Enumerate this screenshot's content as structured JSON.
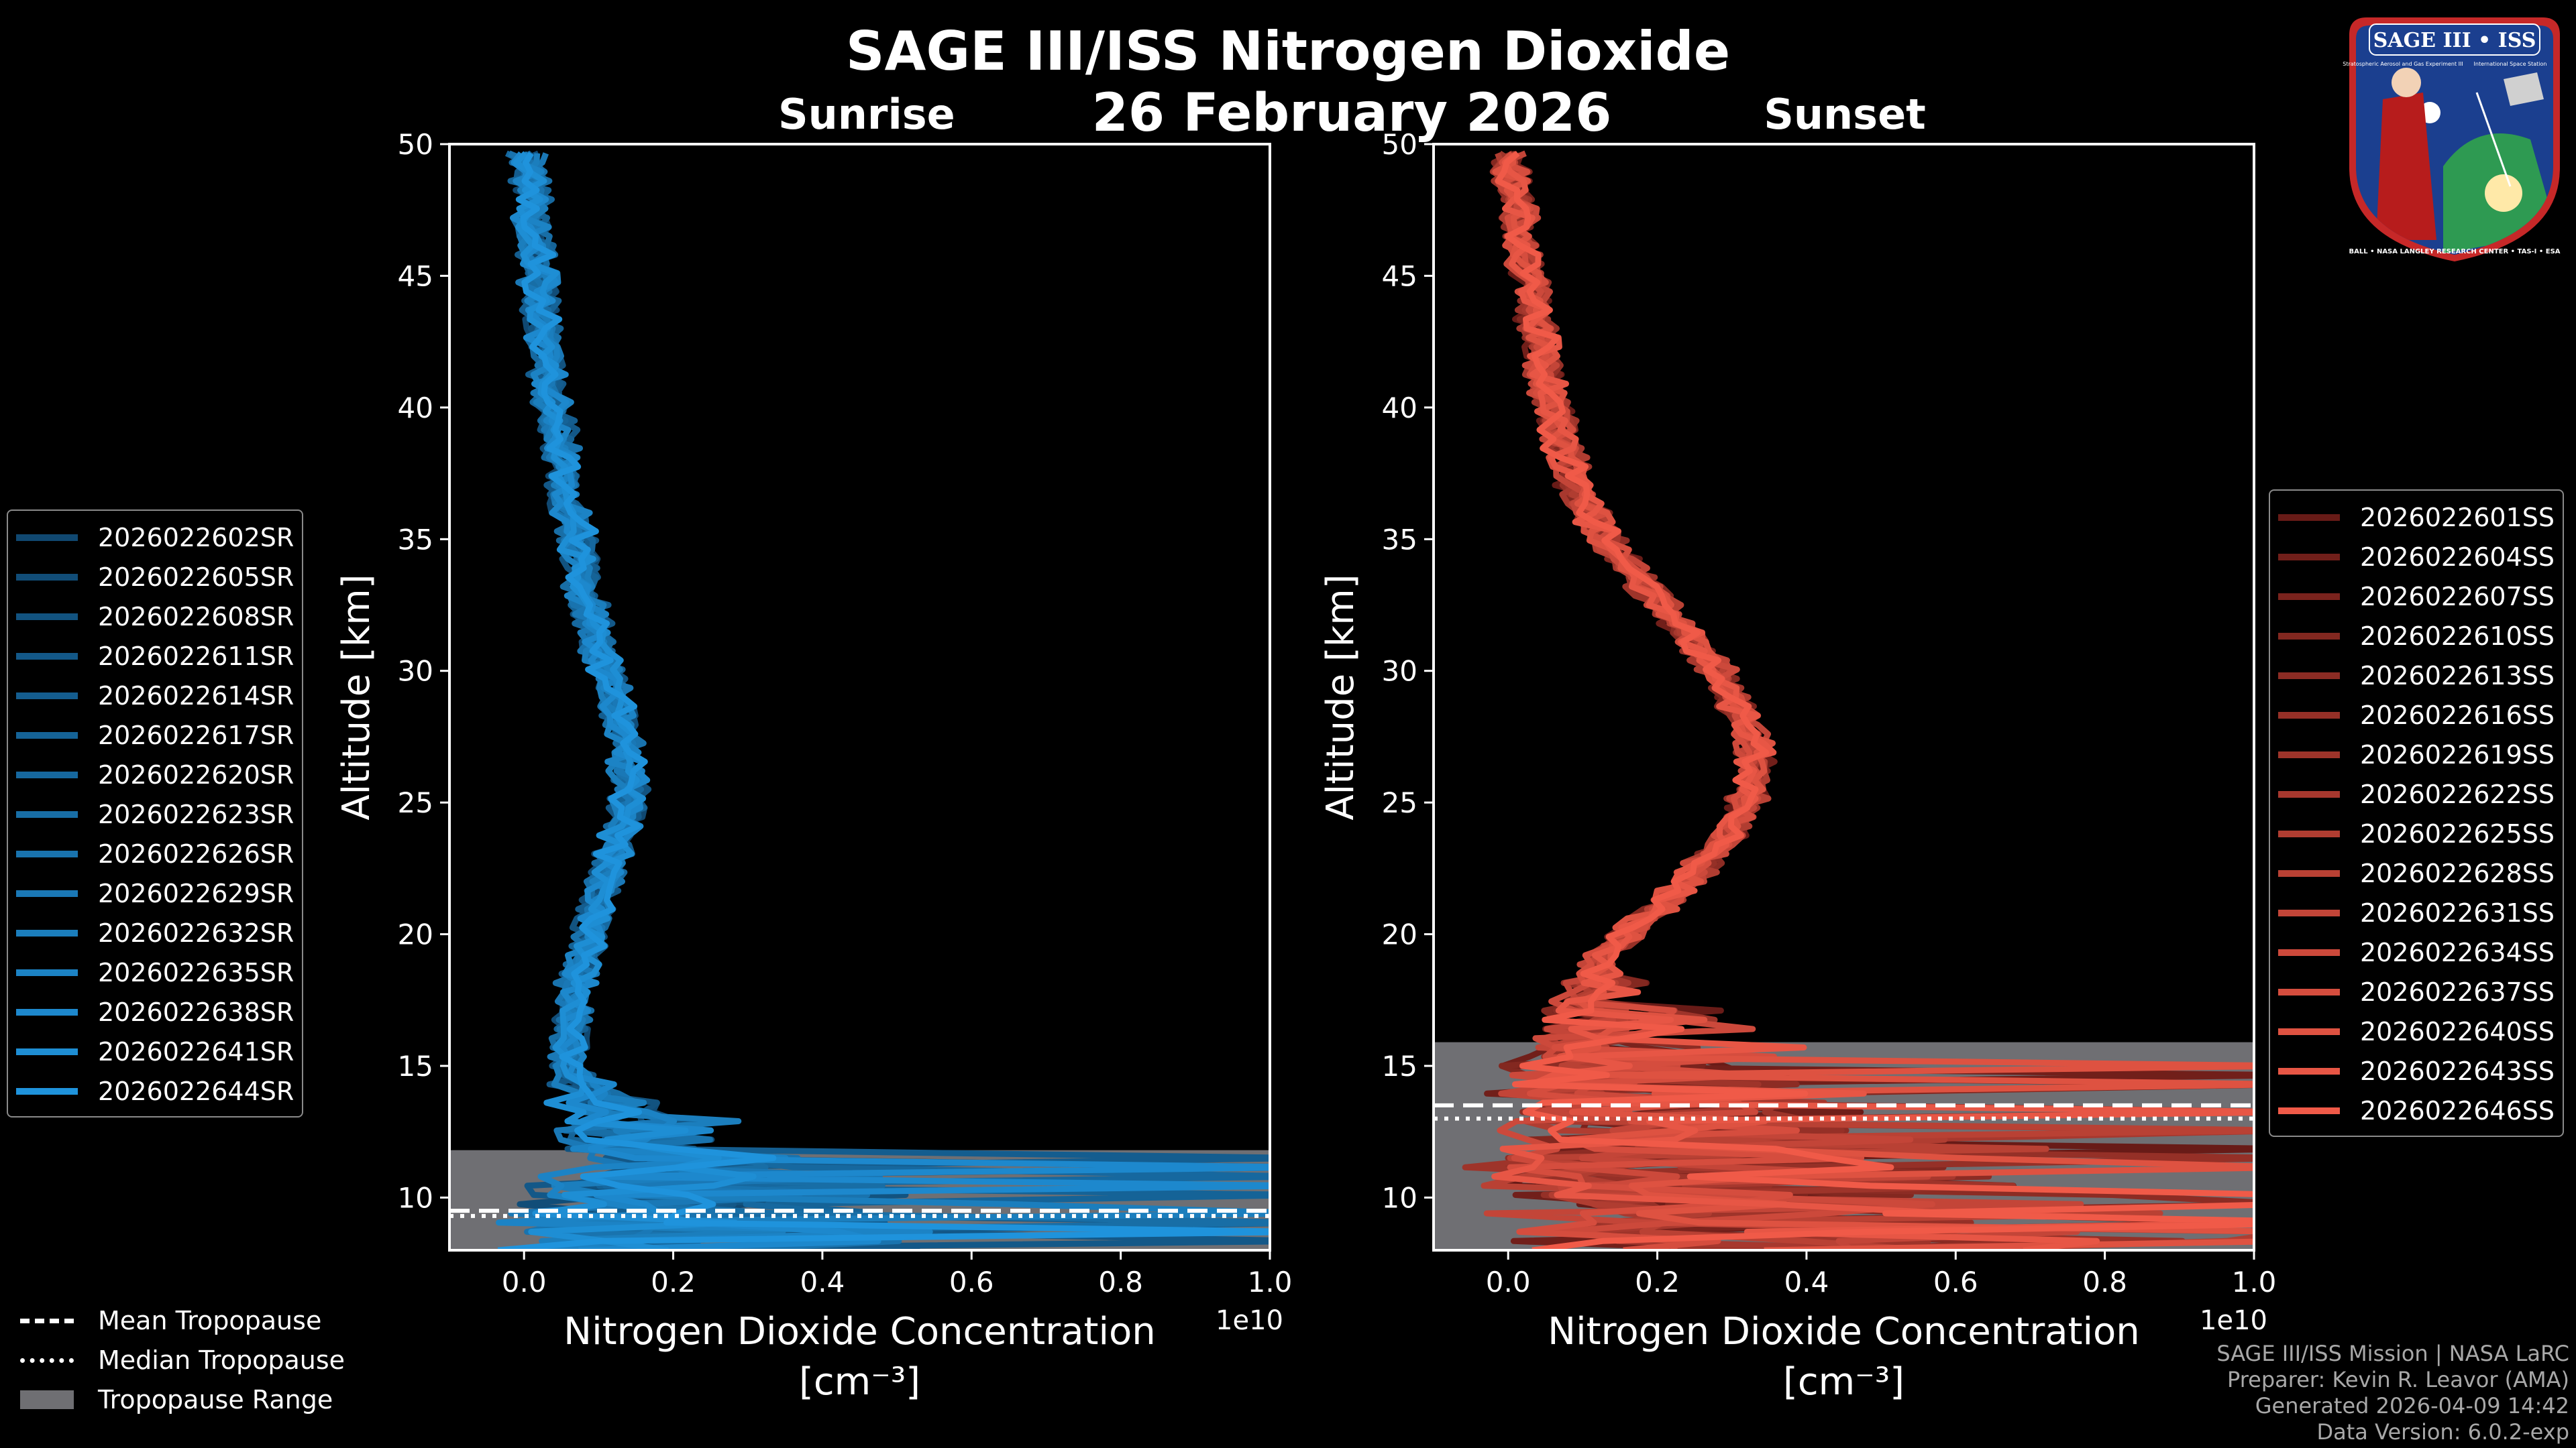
{
  "title": "SAGE III/ISS Nitrogen Dioxide",
  "date": "26 February 2026",
  "panels": [
    {
      "subtitle": "Sunrise",
      "y_label": "Altitude [km]",
      "x_label_1": "Nitrogen Dioxide Concentration",
      "x_label_2": "[cm⁻³]",
      "x_offset": "1e10"
    },
    {
      "subtitle": "Sunset",
      "y_label": "Altitude [km]",
      "x_label_1": "Nitrogen Dioxide Concentration",
      "x_label_2": "[cm⁻³]",
      "x_offset": "1e10"
    }
  ],
  "chart_data": [
    {
      "type": "line",
      "title": "Sunrise",
      "xlabel": "Nitrogen Dioxide Concentration [cm^-3]",
      "ylabel": "Altitude [km]",
      "x_scale": "1e10",
      "xlim": [
        -0.1,
        1.0
      ],
      "ylim": [
        8,
        50
      ],
      "xticks": [
        "0.0",
        "0.2",
        "0.4",
        "0.6",
        "0.8",
        "1.0"
      ],
      "yticks": [
        "10",
        "15",
        "20",
        "25",
        "30",
        "35",
        "40",
        "45",
        "50"
      ],
      "color": "#1f8fd6",
      "tropopause_range": [
        8,
        11.8
      ],
      "mean_tropopause": 9.5,
      "median_tropopause": 9.3,
      "profile_shape": {
        "altitude_km": [
          8,
          9,
          10,
          11,
          12,
          13,
          14,
          15,
          16,
          17,
          18,
          19,
          20,
          21,
          22,
          23,
          24,
          25,
          26,
          27,
          28,
          29,
          30,
          31,
          32,
          33,
          34,
          35,
          36,
          37,
          38,
          39,
          40,
          41,
          42,
          43,
          44,
          45,
          46,
          47,
          48,
          49,
          50
        ],
        "no2_1e10": [
          0.0,
          0.02,
          0.05,
          0.08,
          0.09,
          0.07,
          0.06,
          0.06,
          0.06,
          0.07,
          0.07,
          0.08,
          0.09,
          0.1,
          0.11,
          0.12,
          0.13,
          0.14,
          0.14,
          0.14,
          0.13,
          0.12,
          0.11,
          0.1,
          0.09,
          0.08,
          0.075,
          0.07,
          0.06,
          0.055,
          0.05,
          0.045,
          0.04,
          0.035,
          0.03,
          0.025,
          0.02,
          0.02,
          0.015,
          0.01,
          0.01,
          0.005,
          0.0
        ]
      },
      "series": [
        {
          "name": "2026022602SR"
        },
        {
          "name": "2026022605SR"
        },
        {
          "name": "2026022608SR"
        },
        {
          "name": "2026022611SR"
        },
        {
          "name": "2026022614SR"
        },
        {
          "name": "2026022617SR"
        },
        {
          "name": "2026022620SR"
        },
        {
          "name": "2026022623SR"
        },
        {
          "name": "2026022626SR"
        },
        {
          "name": "2026022629SR"
        },
        {
          "name": "2026022632SR"
        },
        {
          "name": "2026022635SR"
        },
        {
          "name": "2026022638SR"
        },
        {
          "name": "2026022641SR"
        },
        {
          "name": "2026022644SR"
        }
      ]
    },
    {
      "type": "line",
      "title": "Sunset",
      "xlabel": "Nitrogen Dioxide Concentration [cm^-3]",
      "ylabel": "Altitude [km]",
      "x_scale": "1e10",
      "xlim": [
        -0.1,
        1.0
      ],
      "ylim": [
        8,
        50
      ],
      "xticks": [
        "0.0",
        "0.2",
        "0.4",
        "0.6",
        "0.8",
        "1.0"
      ],
      "yticks": [
        "10",
        "15",
        "20",
        "25",
        "30",
        "35",
        "40",
        "45",
        "50"
      ],
      "color": "#ee5a4a",
      "tropopause_range": [
        8,
        15.9
      ],
      "mean_tropopause": 13.5,
      "median_tropopause": 13.0,
      "profile_shape": {
        "altitude_km": [
          8,
          9,
          10,
          11,
          12,
          13,
          14,
          15,
          16,
          17,
          18,
          19,
          20,
          21,
          22,
          23,
          24,
          25,
          26,
          27,
          28,
          29,
          30,
          31,
          32,
          33,
          34,
          35,
          36,
          37,
          38,
          39,
          40,
          41,
          42,
          43,
          44,
          45,
          46,
          47,
          48,
          49,
          50
        ],
        "no2_1e10": [
          0.1,
          0.08,
          0.05,
          0.03,
          0.02,
          0.02,
          0.02,
          0.03,
          0.04,
          0.06,
          0.09,
          0.12,
          0.16,
          0.2,
          0.24,
          0.27,
          0.3,
          0.32,
          0.33,
          0.33,
          0.32,
          0.3,
          0.28,
          0.25,
          0.22,
          0.19,
          0.16,
          0.13,
          0.11,
          0.09,
          0.08,
          0.07,
          0.06,
          0.05,
          0.045,
          0.04,
          0.035,
          0.03,
          0.02,
          0.015,
          0.01,
          0.005,
          0.0
        ]
      },
      "series": [
        {
          "name": "2026022601SS"
        },
        {
          "name": "2026022604SS"
        },
        {
          "name": "2026022607SS"
        },
        {
          "name": "2026022610SS"
        },
        {
          "name": "2026022613SS"
        },
        {
          "name": "2026022616SS"
        },
        {
          "name": "2026022619SS"
        },
        {
          "name": "2026022622SS"
        },
        {
          "name": "2026022625SS"
        },
        {
          "name": "2026022628SS"
        },
        {
          "name": "2026022631SS"
        },
        {
          "name": "2026022634SS"
        },
        {
          "name": "2026022637SS"
        },
        {
          "name": "2026022640SS"
        },
        {
          "name": "2026022643SS"
        },
        {
          "name": "2026022646SS"
        }
      ]
    }
  ],
  "tropopause_legend": {
    "mean": "Mean Tropopause",
    "median": "Median Tropopause",
    "range": "Tropopause Range"
  },
  "colors": {
    "sunrise_dark": "#0b2f4d",
    "sunrise_bright": "#1f93dc",
    "sunset_dark": "#3a0606",
    "sunset_bright": "#f05a48",
    "tropopause_fill": "#6f6f73"
  },
  "footer": {
    "line1": "SAGE III/ISS Mission | NASA LaRC",
    "line2": "Preparer: Kevin R. Leavor (AMA)",
    "line3": "Generated 2026-04-09 14:42",
    "line4": "Data Version: 6.0.2-exp"
  },
  "logo": {
    "title": "SAGE III • ISS",
    "ring_text": "BALL • NASA LANGLEY RESEARCH CENTER • TAS-I • ESA",
    "sub_left": "Stratospheric Aerosol and Gas Experiment III",
    "sub_right": "International Space Station"
  }
}
